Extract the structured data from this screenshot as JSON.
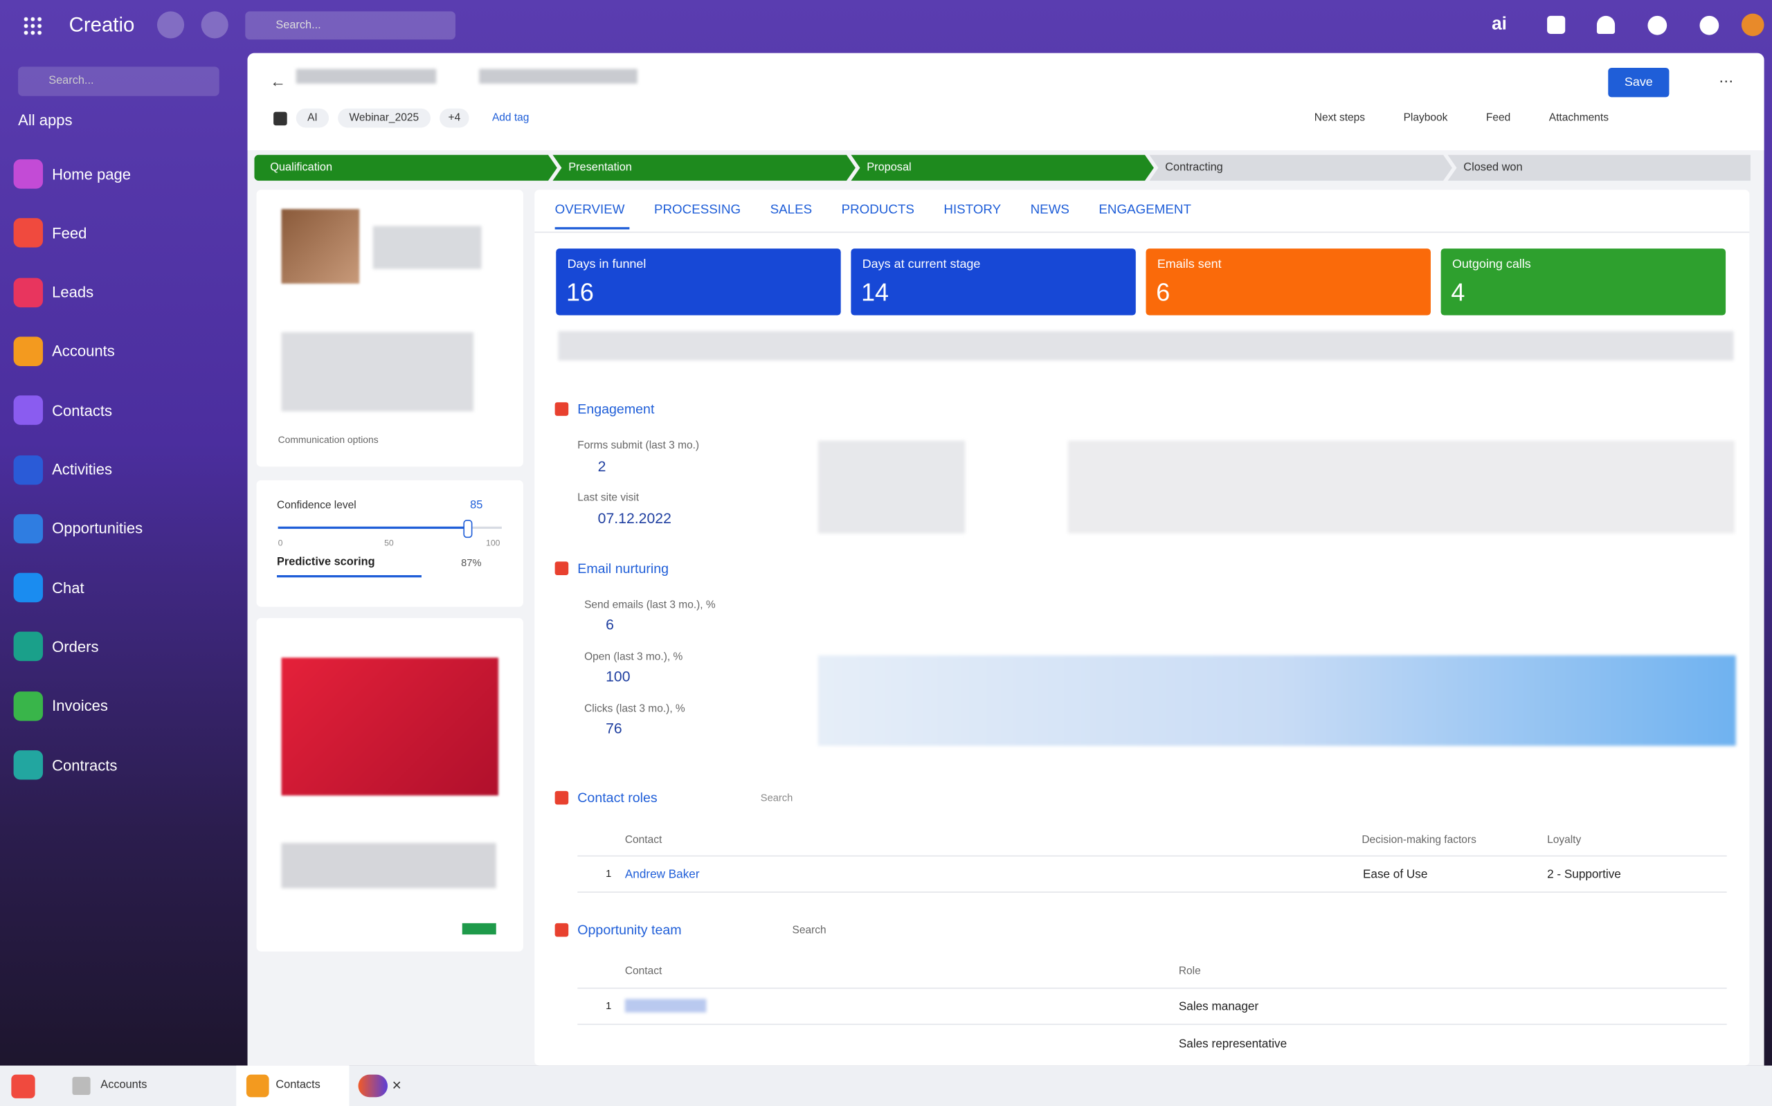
{
  "topbar": {
    "brand": "Creatio",
    "search": "Search..."
  },
  "sidebar": {
    "search": "Search...",
    "apps": "All apps",
    "items": [
      "Home page",
      "Feed",
      "Leads",
      "Accounts",
      "Contacts",
      "Activities",
      "Opportunities",
      "Chat",
      "Orders",
      "Invoices",
      "Contracts"
    ]
  },
  "header": {
    "save": "Save",
    "tags": [
      "AI",
      "Webinar_2025"
    ],
    "more_tags": "+4",
    "add_tag": "Add tag",
    "actions": [
      "Next steps",
      "Playbook",
      "Feed",
      "Attachments"
    ]
  },
  "stages": [
    "Qualification",
    "Presentation",
    "Proposal",
    "Contracting",
    "Closed won"
  ],
  "left_panel": {
    "communication": "Communication options",
    "confidence_label": "Confidence level",
    "confidence": 85,
    "slider_ticks": [
      0,
      50,
      100
    ],
    "predictive": "Predictive scoring",
    "predictive_value": "87%"
  },
  "tabs": [
    "OVERVIEW",
    "PROCESSING",
    "SALES",
    "PRODUCTS",
    "HISTORY",
    "NEWS",
    "ENGAGEMENT"
  ],
  "kpis": [
    {
      "label": "Days in funnel",
      "value": 16,
      "color": "#1748d6"
    },
    {
      "label": "Days at current stage",
      "value": 14,
      "color": "#1748d6"
    },
    {
      "label": "Emails sent",
      "value": 6,
      "color": "#fa6a0a"
    },
    {
      "label": "Outgoing calls",
      "value": 4,
      "color": "#2ea02e"
    }
  ],
  "engagement": {
    "title": "Engagement",
    "form_label": "Forms submit (last 3 mo.)",
    "form_value": 2,
    "visit_label": "Last site visit",
    "visit_value": "07.12.2022"
  },
  "email": {
    "title": "Email nurturing",
    "metrics": [
      {
        "label": "Send emails (last 3 mo.), %",
        "value": 6
      },
      {
        "label": "Open (last 3 mo.), %",
        "value": 100
      },
      {
        "label": "Clicks (last 3 mo.), %",
        "value": 76
      }
    ]
  },
  "contact_roles": {
    "title": "Contact roles",
    "search": "Search",
    "columns": [
      "Contact",
      "Decision-making factors",
      "Loyalty"
    ],
    "rows": [
      {
        "index": 1,
        "contact": "Andrew Baker",
        "factors": "Ease of Use",
        "loyalty": "2 - Supportive"
      }
    ]
  },
  "opportunity_team": {
    "title": "Opportunity team",
    "search": "Search",
    "columns": [
      "Contact",
      "Role"
    ],
    "rows": [
      {
        "index": 1,
        "role": "Sales manager"
      },
      {
        "role": "Sales representative"
      }
    ]
  },
  "taskbar": [
    "Accounts",
    "Contacts"
  ]
}
